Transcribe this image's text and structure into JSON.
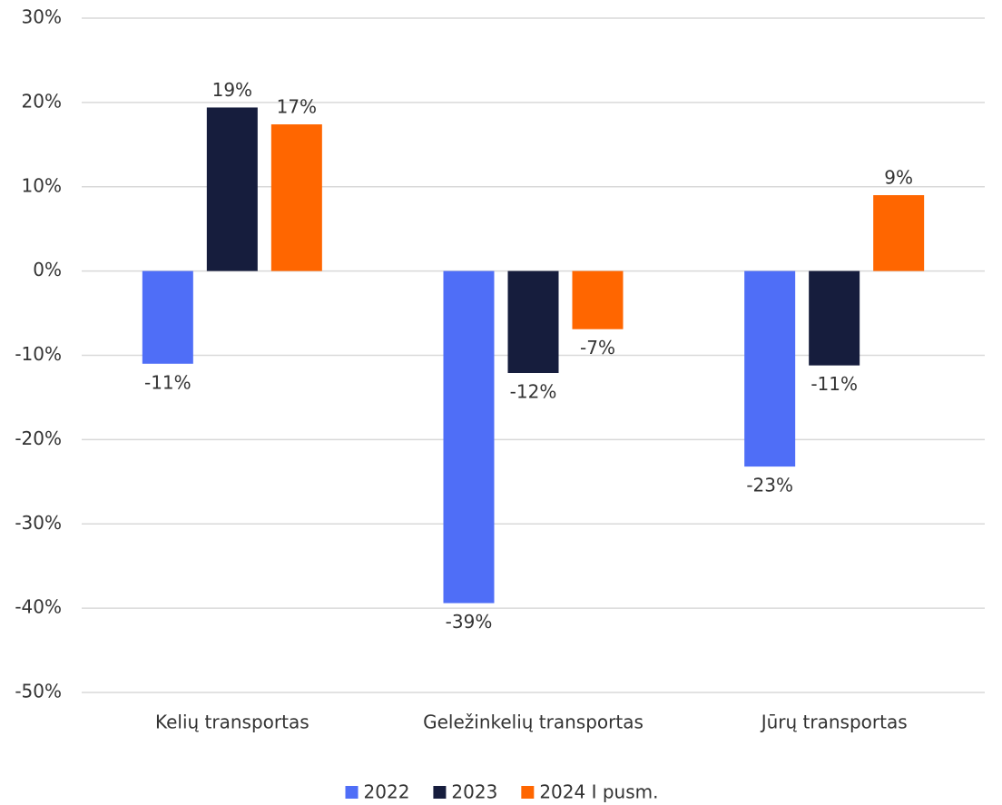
{
  "chart_data": {
    "type": "bar",
    "categories": [
      "Kelių transportas",
      "Geležinkelių transportas",
      "Jūrų transportas"
    ],
    "series": [
      {
        "name": "2022",
        "color": "#4f6ef7",
        "values": [
          -11.0,
          -39.4,
          -23.2
        ],
        "value_labels": [
          "-11%",
          "-39%",
          "-23%"
        ]
      },
      {
        "name": "2023",
        "color": "#161d3d",
        "values": [
          19.4,
          -12.1,
          -11.2
        ],
        "value_labels": [
          "19%",
          "-12%",
          "-11%"
        ]
      },
      {
        "name": "2024 I pusm.",
        "color": "#ff6600",
        "values": [
          17.4,
          -6.9,
          9.0
        ],
        "value_labels": [
          "17%",
          "-7%",
          "9%"
        ]
      }
    ],
    "ylim": [
      -50,
      30
    ],
    "yticks": [
      {
        "value": -50,
        "label": "-50%"
      },
      {
        "value": -40,
        "label": "-40%"
      },
      {
        "value": -30,
        "label": "-30%"
      },
      {
        "value": -20,
        "label": "-20%"
      },
      {
        "value": -10,
        "label": "-10%"
      },
      {
        "value": 0,
        "label": "0%"
      },
      {
        "value": 10,
        "label": "10%"
      },
      {
        "value": 20,
        "label": "20%"
      },
      {
        "value": 30,
        "label": "30%"
      }
    ],
    "grid": true,
    "legend": "bottom"
  }
}
